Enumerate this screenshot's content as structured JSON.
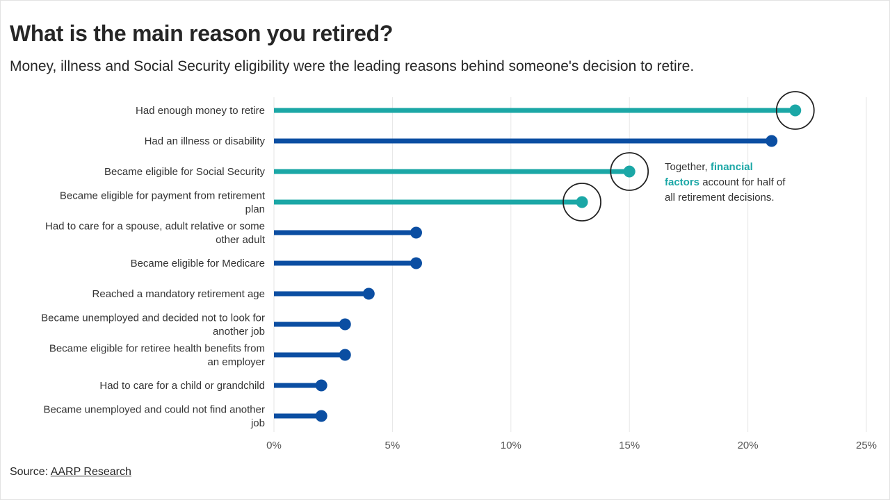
{
  "title": "What is the main reason you retired?",
  "subtitle": "Money, illness and Social Security eligibility were the leading reasons behind someone's decision to retire.",
  "annotation": {
    "pre": "Together, ",
    "highlight": "financial factors",
    "post": " account for half of all retirement decisions."
  },
  "source": {
    "prefix": "Source: ",
    "link_text": "AARP Research"
  },
  "colors": {
    "financial": "#1ba7a6",
    "other": "#0b4ea2",
    "grid": "#e6e6e6",
    "circle": "#222222"
  },
  "chart_data": {
    "type": "lollipop",
    "xlim": [
      0,
      25
    ],
    "xticks": [
      0,
      5,
      10,
      15,
      20,
      25
    ],
    "xtick_suffix": "%",
    "grid": "vertical",
    "categories": [
      {
        "label_lines": [
          "Had enough money to retire"
        ],
        "value": 22,
        "group": "financial",
        "circled": true
      },
      {
        "label_lines": [
          "Had an illness or disability"
        ],
        "value": 21,
        "group": "other",
        "circled": false
      },
      {
        "label_lines": [
          "Became eligible for Social Security"
        ],
        "value": 15,
        "group": "financial",
        "circled": true
      },
      {
        "label_lines": [
          "Became eligible for payment from retirement",
          "plan"
        ],
        "value": 13,
        "group": "financial",
        "circled": true
      },
      {
        "label_lines": [
          "Had to care for a spouse, adult relative or some",
          "other adult"
        ],
        "value": 6,
        "group": "other",
        "circled": false
      },
      {
        "label_lines": [
          "Became eligible for Medicare"
        ],
        "value": 6,
        "group": "other",
        "circled": false
      },
      {
        "label_lines": [
          "Reached a mandatory retirement age"
        ],
        "value": 4,
        "group": "other",
        "circled": false
      },
      {
        "label_lines": [
          "Became unemployed and decided not to look for",
          "another job"
        ],
        "value": 3,
        "group": "other",
        "circled": false
      },
      {
        "label_lines": [
          "Became eligible for retiree health benefits from",
          "an employer"
        ],
        "value": 3,
        "group": "other",
        "circled": false
      },
      {
        "label_lines": [
          "Had to care for a child or grandchild"
        ],
        "value": 2,
        "group": "other",
        "circled": false
      },
      {
        "label_lines": [
          "Became unemployed and could not find another",
          "job"
        ],
        "value": 2,
        "group": "other",
        "circled": false
      }
    ]
  }
}
